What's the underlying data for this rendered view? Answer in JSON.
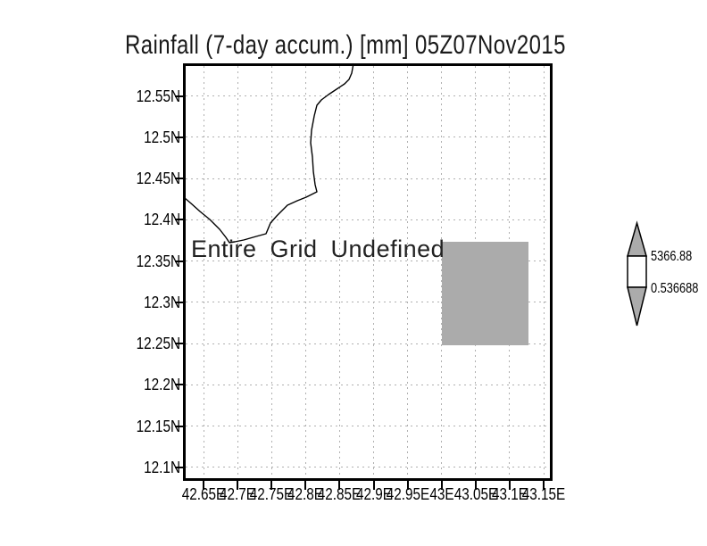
{
  "title": "Rainfall (7-day accum.) [mm] 05Z07Nov2015",
  "plot": {
    "message": "Entire Grid Undefined",
    "y_axis_labels": [
      "12.55N",
      "12.5N",
      "12.45N",
      "12.4N",
      "12.35N",
      "12.3N",
      "12.25N",
      "12.2N",
      "12.15N",
      "12.1N"
    ],
    "x_axis_labels": [
      "42.65E",
      "42.7E",
      "42.75E",
      "42.8E",
      "42.85E",
      "42.9E",
      "42.95E",
      "43E",
      "43.05E",
      "43.1E",
      "43.15E"
    ]
  },
  "colorbar": {
    "top_label": "5366.88",
    "bottom_label": "0.536688"
  },
  "colors": {
    "undefined_gray": "#ababab",
    "gridline": "#b0b0b0",
    "frame": "#000000",
    "background": "#ffffff"
  },
  "chart_data": {
    "type": "heatmap",
    "title": "Rainfall (7-day accum.) [mm] 05Z07Nov2015",
    "x_ticks": [
      "42.65E",
      "42.7E",
      "42.75E",
      "42.8E",
      "42.85E",
      "42.9E",
      "42.95E",
      "43E",
      "43.05E",
      "43.1E",
      "43.15E"
    ],
    "y_ticks": [
      "12.55N",
      "12.5N",
      "12.45N",
      "12.4N",
      "12.35N",
      "12.3N",
      "12.25N",
      "12.2N",
      "12.15N",
      "12.1N"
    ],
    "x_range_deg_east": [
      42.62,
      43.16
    ],
    "y_range_deg_north": [
      12.085,
      12.59
    ],
    "annotation": "Entire Grid Undefined",
    "grid": true,
    "legend_position": "right",
    "colorbar": {
      "max": 5366.88,
      "min": 0.536688,
      "labels": [
        "5366.88",
        "0.536688"
      ]
    },
    "cells": [
      {
        "value": "undefined (gray shade)",
        "lon_extent": [
          43.0,
          43.13
        ],
        "lat_extent": [
          12.25,
          12.375
        ]
      }
    ],
    "map_outline": "coastline crossing plot from west edge (~12.42N) to north edge (~42.97E)"
  }
}
